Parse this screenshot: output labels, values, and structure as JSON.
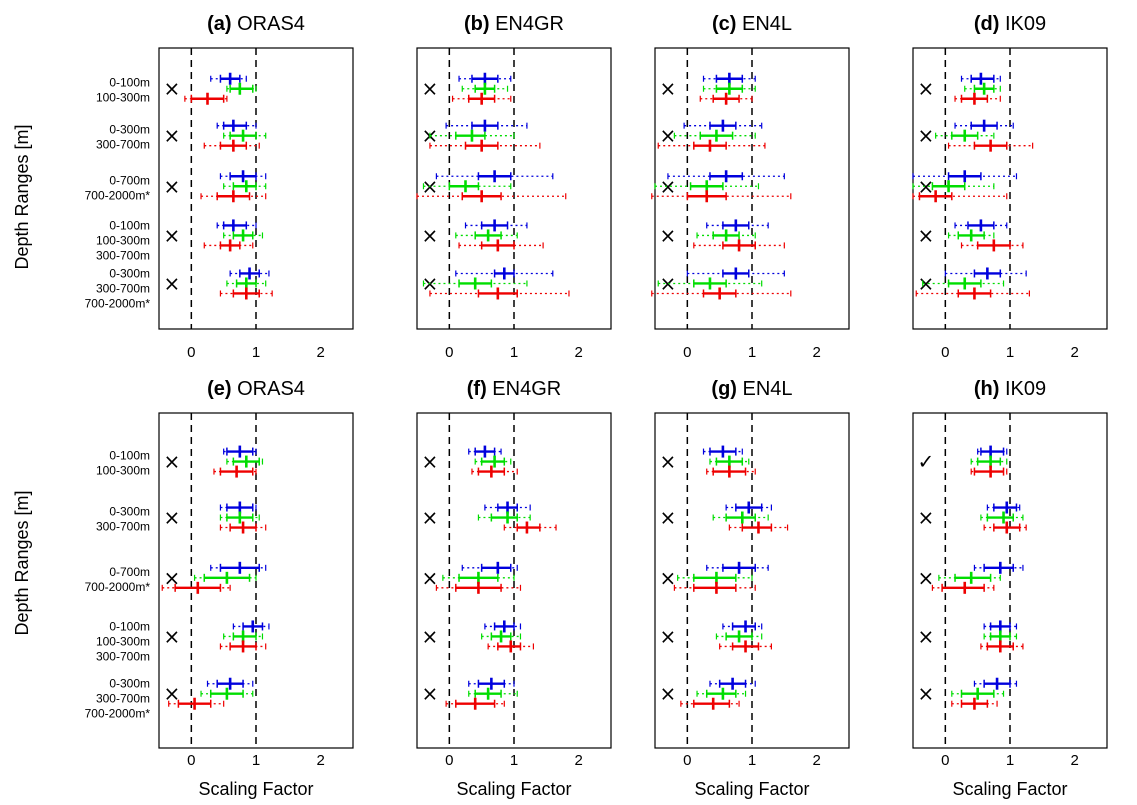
{
  "figure": {
    "ylabel": "Depth Ranges [m]",
    "xlabel": "Scaling Factor",
    "colors": {
      "first": "#0000dd",
      "second": "#00dd00",
      "third": "#ee0000"
    },
    "x_ticks": [
      "0",
      "1",
      "2"
    ],
    "row_labels": [
      [
        "0-100m",
        "100-300m"
      ],
      [
        "0-300m",
        "300-700m"
      ],
      [
        "0-700m",
        "700-2000m*"
      ],
      [
        "0-100m",
        "100-300m",
        "300-700m"
      ],
      [
        "0-300m",
        "300-700m",
        "700-2000m*"
      ]
    ]
  },
  "chart_data": [
    {
      "type": "errorbar",
      "letter": "(a)",
      "name": "ORAS4",
      "xlim": [
        -0.5,
        2.5
      ],
      "marks": [
        "×",
        "×",
        "×",
        "×",
        "×"
      ],
      "groups": [
        [
          [
            0.6,
            0.45,
            0.75,
            0.3,
            0.85
          ],
          [
            0.75,
            0.6,
            0.95,
            0.55,
            1.0
          ],
          [
            0.25,
            0.0,
            0.5,
            -0.1,
            0.55
          ]
        ],
        [
          [
            0.65,
            0.5,
            0.85,
            0.4,
            1.0
          ],
          [
            0.8,
            0.6,
            1.0,
            0.5,
            1.15
          ],
          [
            0.65,
            0.45,
            0.85,
            0.2,
            1.05
          ]
        ],
        [
          [
            0.8,
            0.6,
            1.0,
            0.45,
            1.15
          ],
          [
            0.85,
            0.65,
            1.0,
            0.5,
            1.15
          ],
          [
            0.65,
            0.4,
            0.9,
            0.15,
            1.15
          ]
        ],
        [
          [
            0.65,
            0.5,
            0.85,
            0.4,
            1.0
          ],
          [
            0.8,
            0.65,
            0.95,
            0.5,
            1.1
          ],
          [
            0.6,
            0.45,
            0.75,
            0.2,
            0.95
          ]
        ],
        [
          [
            0.9,
            0.75,
            1.05,
            0.6,
            1.2
          ],
          [
            0.85,
            0.7,
            1.0,
            0.55,
            1.15
          ],
          [
            0.85,
            0.65,
            1.05,
            0.45,
            1.25
          ]
        ]
      ]
    },
    {
      "type": "errorbar",
      "letter": "(b)",
      "name": "EN4GR",
      "xlim": [
        -0.5,
        2.5
      ],
      "marks": [
        "×",
        "×",
        "×",
        "×",
        "×"
      ],
      "groups": [
        [
          [
            0.55,
            0.35,
            0.75,
            0.15,
            0.95
          ],
          [
            0.55,
            0.4,
            0.7,
            0.2,
            0.9
          ],
          [
            0.5,
            0.3,
            0.7,
            0.05,
            0.95
          ]
        ],
        [
          [
            0.55,
            0.35,
            0.75,
            -0.05,
            1.2
          ],
          [
            0.35,
            0.1,
            0.55,
            -0.3,
            1.0
          ],
          [
            0.5,
            0.25,
            0.75,
            -0.3,
            1.4
          ]
        ],
        [
          [
            0.7,
            0.45,
            0.95,
            -0.2,
            1.6
          ],
          [
            0.25,
            0.0,
            0.45,
            -0.4,
            0.95
          ],
          [
            0.5,
            0.2,
            0.8,
            -0.5,
            1.8
          ]
        ],
        [
          [
            0.7,
            0.5,
            0.9,
            0.25,
            1.2
          ],
          [
            0.6,
            0.4,
            0.8,
            0.1,
            1.05
          ],
          [
            0.75,
            0.5,
            1.0,
            0.15,
            1.45
          ]
        ],
        [
          [
            0.85,
            0.7,
            1.0,
            0.1,
            1.6
          ],
          [
            0.4,
            0.15,
            0.65,
            -0.4,
            1.2
          ],
          [
            0.75,
            0.45,
            1.05,
            -0.3,
            1.85
          ]
        ]
      ]
    },
    {
      "type": "errorbar",
      "letter": "(c)",
      "name": "EN4L",
      "xlim": [
        -0.5,
        2.5
      ],
      "marks": [
        "×",
        "×",
        "×",
        "×",
        "×"
      ],
      "groups": [
        [
          [
            0.65,
            0.45,
            0.85,
            0.25,
            1.05
          ],
          [
            0.65,
            0.45,
            0.85,
            0.25,
            1.05
          ],
          [
            0.6,
            0.4,
            0.8,
            0.2,
            1.0
          ]
        ],
        [
          [
            0.55,
            0.35,
            0.75,
            -0.05,
            1.15
          ],
          [
            0.45,
            0.2,
            0.7,
            -0.2,
            1.05
          ],
          [
            0.35,
            0.1,
            0.6,
            -0.45,
            1.2
          ]
        ],
        [
          [
            0.6,
            0.35,
            0.85,
            -0.3,
            1.5
          ],
          [
            0.3,
            0.05,
            0.55,
            -0.5,
            1.1
          ],
          [
            0.3,
            0.0,
            0.6,
            -0.55,
            1.6
          ]
        ],
        [
          [
            0.75,
            0.55,
            0.95,
            0.3,
            1.25
          ],
          [
            0.6,
            0.4,
            0.8,
            0.15,
            1.05
          ],
          [
            0.8,
            0.55,
            1.05,
            0.1,
            1.5
          ]
        ],
        [
          [
            0.75,
            0.55,
            0.95,
            0.0,
            1.5
          ],
          [
            0.35,
            0.1,
            0.6,
            -0.45,
            1.15
          ],
          [
            0.5,
            0.25,
            0.75,
            -0.55,
            1.6
          ]
        ]
      ]
    },
    {
      "type": "errorbar",
      "letter": "(d)",
      "name": "IK09",
      "xlim": [
        -0.5,
        2.5
      ],
      "marks": [
        "×",
        "×",
        "×",
        "×",
        "×"
      ],
      "groups": [
        [
          [
            0.55,
            0.4,
            0.75,
            0.25,
            0.85
          ],
          [
            0.6,
            0.45,
            0.75,
            0.3,
            0.85
          ],
          [
            0.45,
            0.25,
            0.65,
            0.15,
            0.85
          ]
        ],
        [
          [
            0.6,
            0.4,
            0.8,
            0.15,
            1.05
          ],
          [
            0.3,
            0.1,
            0.5,
            -0.15,
            0.75
          ],
          [
            0.7,
            0.45,
            0.95,
            0.05,
            1.35
          ]
        ],
        [
          [
            0.3,
            0.05,
            0.55,
            -0.5,
            1.1
          ],
          [
            0.05,
            -0.2,
            0.3,
            -0.5,
            0.75
          ],
          [
            -0.15,
            -0.4,
            0.1,
            -0.5,
            0.95
          ]
        ],
        [
          [
            0.55,
            0.35,
            0.75,
            0.15,
            0.95
          ],
          [
            0.4,
            0.2,
            0.6,
            0.05,
            0.75
          ],
          [
            0.75,
            0.5,
            1.0,
            0.25,
            1.2
          ]
        ],
        [
          [
            0.65,
            0.45,
            0.85,
            0.0,
            1.25
          ],
          [
            0.3,
            0.05,
            0.55,
            -0.35,
            0.9
          ],
          [
            0.45,
            0.2,
            0.7,
            -0.45,
            1.3
          ]
        ]
      ]
    },
    {
      "type": "errorbar",
      "letter": "(e)",
      "name": "ORAS4",
      "xlim": [
        -0.5,
        2.5
      ],
      "marks": [
        "×",
        "×",
        "×",
        "×",
        "×"
      ],
      "groups": [
        [
          [
            0.75,
            0.55,
            0.95,
            0.5,
            1.0
          ],
          [
            0.85,
            0.65,
            1.05,
            0.55,
            1.1
          ],
          [
            0.7,
            0.45,
            0.95,
            0.35,
            1.0
          ]
        ],
        [
          [
            0.75,
            0.55,
            0.95,
            0.45,
            1.0
          ],
          [
            0.75,
            0.55,
            0.95,
            0.45,
            1.05
          ],
          [
            0.8,
            0.6,
            1.0,
            0.45,
            1.15
          ]
        ],
        [
          [
            0.75,
            0.45,
            1.05,
            0.3,
            1.15
          ],
          [
            0.55,
            0.2,
            0.9,
            0.05,
            1.0
          ],
          [
            0.1,
            -0.25,
            0.45,
            -0.45,
            0.6
          ]
        ],
        [
          [
            0.95,
            0.8,
            1.1,
            0.65,
            1.2
          ],
          [
            0.8,
            0.65,
            1.0,
            0.5,
            1.1
          ],
          [
            0.8,
            0.6,
            1.0,
            0.45,
            1.15
          ]
        ],
        [
          [
            0.6,
            0.4,
            0.8,
            0.25,
            0.95
          ],
          [
            0.55,
            0.3,
            0.8,
            0.15,
            0.95
          ],
          [
            0.05,
            -0.2,
            0.3,
            -0.35,
            0.5
          ]
        ]
      ]
    },
    {
      "type": "errorbar",
      "letter": "(f)",
      "name": "EN4GR",
      "xlim": [
        -0.5,
        2.5
      ],
      "marks": [
        "×",
        "×",
        "×",
        "×",
        "×"
      ],
      "groups": [
        [
          [
            0.55,
            0.4,
            0.7,
            0.3,
            0.8
          ],
          [
            0.7,
            0.5,
            0.85,
            0.4,
            0.95
          ],
          [
            0.65,
            0.45,
            0.85,
            0.35,
            1.05
          ]
        ],
        [
          [
            0.9,
            0.75,
            1.05,
            0.55,
            1.25
          ],
          [
            0.9,
            0.65,
            1.05,
            0.45,
            1.25
          ],
          [
            1.2,
            1.05,
            1.4,
            0.85,
            1.65
          ]
        ],
        [
          [
            0.75,
            0.5,
            0.95,
            0.2,
            1.05
          ],
          [
            0.45,
            0.15,
            0.75,
            -0.1,
            1.0
          ],
          [
            0.45,
            0.1,
            0.8,
            -0.2,
            1.1
          ]
        ],
        [
          [
            0.85,
            0.7,
            1.0,
            0.55,
            1.1
          ],
          [
            0.8,
            0.65,
            0.95,
            0.5,
            1.1
          ],
          [
            0.95,
            0.75,
            1.1,
            0.6,
            1.3
          ]
        ],
        [
          [
            0.65,
            0.45,
            0.85,
            0.3,
            1.0
          ],
          [
            0.6,
            0.4,
            0.8,
            0.3,
            1.05
          ],
          [
            0.4,
            0.1,
            0.7,
            -0.05,
            0.85
          ]
        ]
      ]
    },
    {
      "type": "errorbar",
      "letter": "(g)",
      "name": "EN4L",
      "xlim": [
        -0.5,
        2.5
      ],
      "marks": [
        "×",
        "×",
        "×",
        "×",
        "×"
      ],
      "groups": [
        [
          [
            0.55,
            0.35,
            0.75,
            0.25,
            0.85
          ],
          [
            0.65,
            0.45,
            0.85,
            0.35,
            0.95
          ],
          [
            0.65,
            0.4,
            0.9,
            0.3,
            1.05
          ]
        ],
        [
          [
            0.95,
            0.75,
            1.15,
            0.6,
            1.3
          ],
          [
            0.85,
            0.6,
            1.05,
            0.4,
            1.25
          ],
          [
            1.1,
            0.85,
            1.3,
            0.65,
            1.55
          ]
        ],
        [
          [
            0.8,
            0.55,
            1.05,
            0.3,
            1.25
          ],
          [
            0.45,
            0.1,
            0.75,
            -0.15,
            1.0
          ],
          [
            0.45,
            0.1,
            0.75,
            -0.2,
            1.05
          ]
        ],
        [
          [
            0.9,
            0.7,
            1.05,
            0.55,
            1.15
          ],
          [
            0.8,
            0.6,
            1.0,
            0.45,
            1.15
          ],
          [
            0.9,
            0.7,
            1.1,
            0.5,
            1.3
          ]
        ],
        [
          [
            0.7,
            0.5,
            0.9,
            0.35,
            1.05
          ],
          [
            0.55,
            0.3,
            0.75,
            0.15,
            0.9
          ],
          [
            0.4,
            0.1,
            0.65,
            -0.1,
            0.8
          ]
        ]
      ]
    },
    {
      "type": "errorbar",
      "letter": "(h)",
      "name": "IK09",
      "xlim": [
        -0.5,
        2.5
      ],
      "marks": [
        "✓",
        "×",
        "×",
        "×",
        "×"
      ],
      "groups": [
        [
          [
            0.7,
            0.55,
            0.9,
            0.5,
            0.95
          ],
          [
            0.7,
            0.5,
            0.85,
            0.4,
            0.95
          ],
          [
            0.7,
            0.45,
            0.9,
            0.4,
            0.95
          ]
        ],
        [
          [
            0.95,
            0.75,
            1.1,
            0.65,
            1.15
          ],
          [
            0.9,
            0.65,
            1.05,
            0.55,
            1.2
          ],
          [
            0.95,
            0.75,
            1.15,
            0.6,
            1.25
          ]
        ],
        [
          [
            0.85,
            0.6,
            1.05,
            0.45,
            1.2
          ],
          [
            0.4,
            0.15,
            0.7,
            -0.1,
            0.85
          ],
          [
            0.3,
            -0.05,
            0.6,
            -0.2,
            0.75
          ]
        ],
        [
          [
            0.85,
            0.7,
            1.0,
            0.6,
            1.1
          ],
          [
            0.85,
            0.7,
            1.0,
            0.6,
            1.1
          ],
          [
            0.85,
            0.65,
            1.05,
            0.55,
            1.2
          ]
        ],
        [
          [
            0.8,
            0.6,
            1.0,
            0.45,
            1.1
          ],
          [
            0.5,
            0.25,
            0.75,
            0.1,
            0.9
          ],
          [
            0.45,
            0.25,
            0.65,
            0.1,
            0.8
          ]
        ]
      ]
    }
  ]
}
